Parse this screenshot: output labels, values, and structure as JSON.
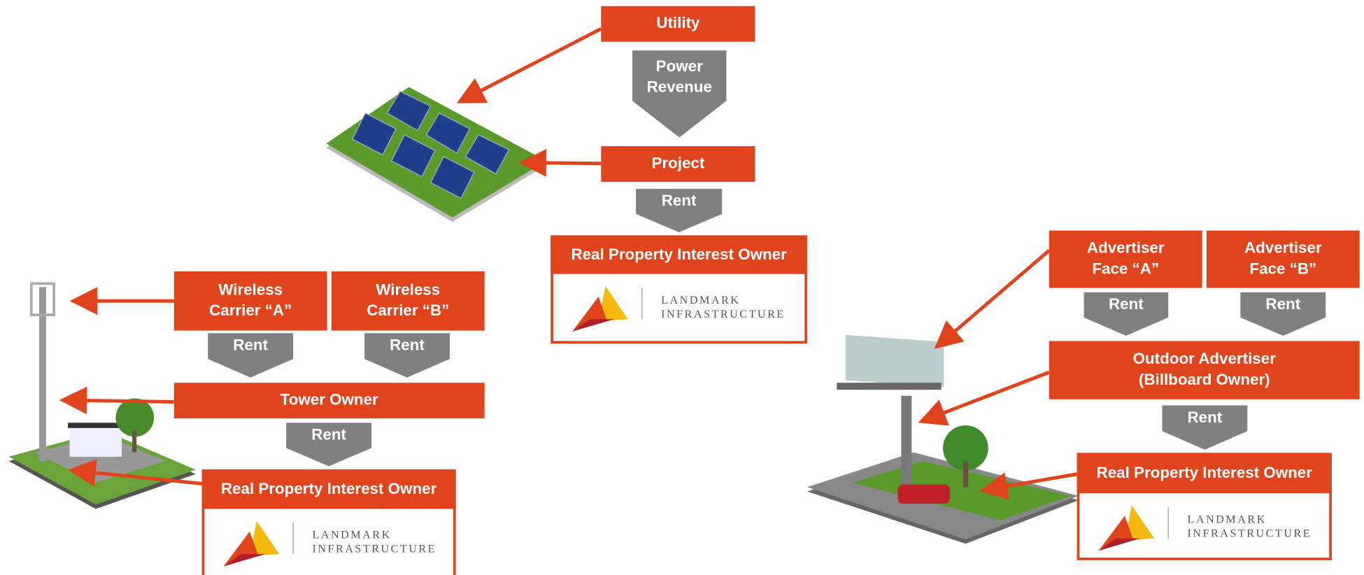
{
  "solar": {
    "top": "Utility",
    "flow1": [
      "Power",
      "Revenue"
    ],
    "middle": "Project",
    "flow2": "Rent",
    "owner": "Real Property Interest Owner",
    "logo": [
      "LANDMARK",
      "INFRASTRUCTURE"
    ]
  },
  "wireless": {
    "tenants": [
      [
        "Wireless",
        "Carrier “A”"
      ],
      [
        "Wireless",
        "Carrier “B”"
      ]
    ],
    "tenant_flows": [
      "Rent",
      "Rent"
    ],
    "middle": "Tower Owner",
    "flow": "Rent",
    "owner": "Real Property Interest Owner",
    "logo": [
      "LANDMARK",
      "INFRASTRUCTURE"
    ]
  },
  "billboard": {
    "tenants": [
      [
        "Advertiser",
        "Face “A”"
      ],
      [
        "Advertiser",
        "Face “B”"
      ]
    ],
    "tenant_flows": [
      "Rent",
      "Rent"
    ],
    "middle": [
      "Outdoor Advertiser",
      "(Billboard Owner)"
    ],
    "flow": "Rent",
    "owner": "Real Property Interest Owner",
    "logo": [
      "LANDMARK",
      "INFRASTRUCTURE"
    ]
  }
}
